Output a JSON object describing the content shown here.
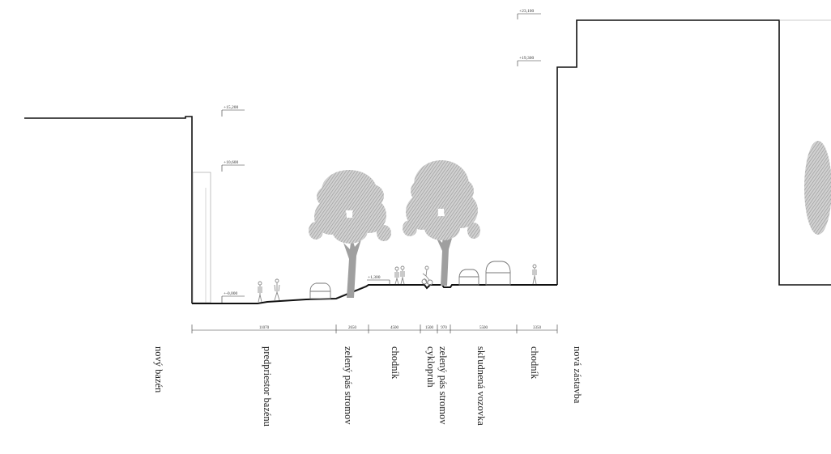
{
  "title": "",
  "levels": {
    "l23100": "+23,100",
    "l19300": "+19,300",
    "l15200": "+15,200",
    "l10600": "+10,600",
    "l0000": "+-0,000",
    "l1300": "+1,300"
  },
  "dimensions": [
    "11070",
    "2650",
    "4500",
    "1500",
    "970",
    "5500",
    "3350"
  ],
  "zones": {
    "novy_bazen": "nový bazén",
    "predpriestor": "predpriestor bazénu",
    "zeleny_pas_1": "zelený pás stromov",
    "chodnik_1": "chodník",
    "zeleny_pas_2": "zelený pás stromov",
    "cyklopruh": "cyklopruh",
    "vozovka": "skľudnená vozovka",
    "chodnik_2": "chodník",
    "nova_zastavba": "nová zástavba"
  },
  "colors": {
    "line": "#111111",
    "foliage": "#b3b3b3",
    "trunk": "#9a9a9a",
    "figure": "#8a8a8a"
  }
}
